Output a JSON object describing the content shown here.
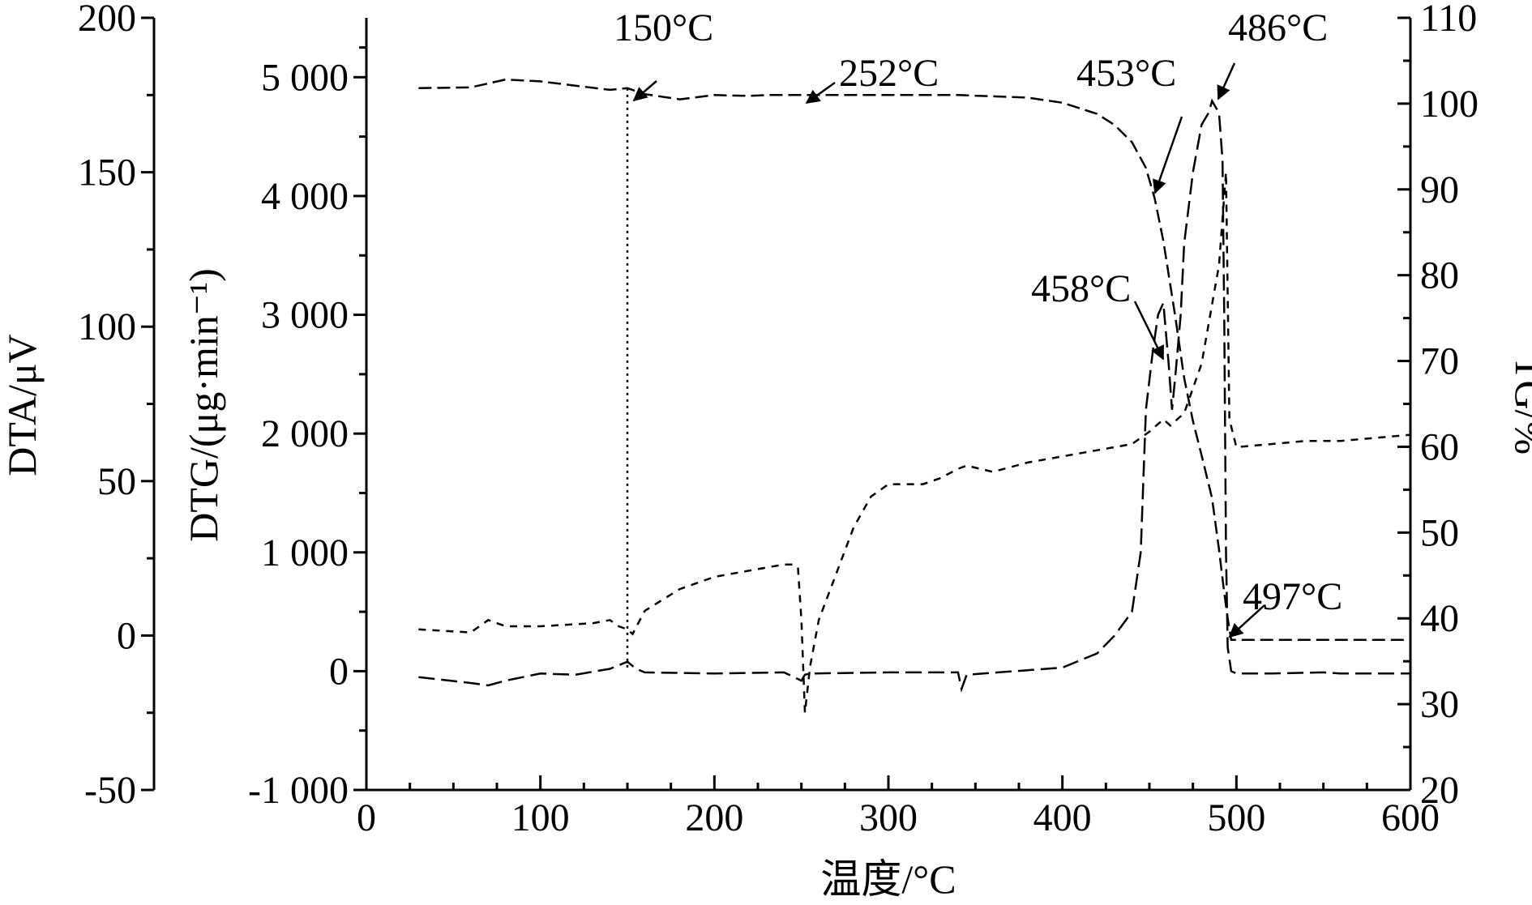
{
  "chart_data": {
    "type": "line",
    "xlabel": "温度/°C",
    "x_ticks": [
      0,
      100,
      200,
      300,
      400,
      500,
      600
    ],
    "xlim": [
      0,
      600
    ],
    "axes": {
      "dta": {
        "label": "DTA/μV",
        "ylim": [
          -50,
          200
        ],
        "ticks": [
          "-50",
          "0",
          "50",
          "100",
          "150",
          "200"
        ],
        "tick_values": [
          -50,
          0,
          50,
          100,
          150,
          200
        ]
      },
      "dtg": {
        "label": "DTG/(μg·min⁻¹)",
        "ylim": [
          -1000,
          5500
        ],
        "ticks": [
          "-1 000",
          "0",
          "1 000",
          "2 000",
          "3 000",
          "4 000",
          "5 000"
        ],
        "tick_values": [
          -1000,
          0,
          1000,
          2000,
          3000,
          4000,
          5000
        ]
      },
      "tg": {
        "label": "TG/%",
        "ylim": [
          20,
          110
        ],
        "ticks": [
          "20",
          "30",
          "40",
          "50",
          "60",
          "70",
          "80",
          "90",
          "100",
          "110"
        ],
        "tick_values": [
          20,
          30,
          40,
          50,
          60,
          70,
          80,
          90,
          100,
          110
        ]
      }
    },
    "series": [
      {
        "axis": "tg",
        "dash": "16,7",
        "x": [
          30,
          60,
          80,
          100,
          120,
          140,
          150,
          160,
          180,
          200,
          220,
          230,
          260,
          300,
          340,
          380,
          400,
          420,
          430,
          440,
          448,
          453,
          458,
          465,
          470,
          475,
          480,
          486,
          490,
          493,
          495,
          497,
          520,
          560,
          600
        ],
        "y": [
          101.8,
          101.9,
          102.8,
          102.6,
          102.1,
          101.6,
          101.8,
          101.1,
          100.5,
          101.0,
          100.9,
          101.0,
          101.0,
          101.0,
          101.0,
          100.7,
          100.1,
          98.8,
          97.5,
          95.5,
          92.5,
          89.0,
          84.0,
          75.0,
          68.0,
          63.0,
          59.0,
          54.0,
          48.0,
          43.0,
          40.0,
          37.5,
          37.5,
          37.5,
          37.5
        ]
      },
      {
        "axis": "dtg",
        "dash": "20,8",
        "x": [
          30,
          60,
          70,
          80,
          100,
          120,
          140,
          150,
          155,
          160,
          200,
          240,
          250,
          252,
          255,
          300,
          340,
          342,
          345,
          400,
          420,
          430,
          440,
          445,
          448,
          452,
          455,
          458,
          461,
          463,
          465,
          468,
          470,
          475,
          480,
          484,
          486,
          488,
          490,
          492,
          493,
          494,
          495,
          497,
          500,
          520,
          550,
          560,
          600
        ],
        "y": [
          -50,
          -100,
          -120,
          -80,
          -20,
          -30,
          20,
          80,
          20,
          -10,
          -20,
          -10,
          -80,
          -30,
          -20,
          -10,
          -10,
          -150,
          -30,
          30,
          150,
          300,
          500,
          1000,
          2200,
          2700,
          3000,
          3100,
          2600,
          2200,
          2500,
          3000,
          3600,
          4200,
          4600,
          4700,
          4800,
          4750,
          4700,
          4300,
          3000,
          1000,
          200,
          0,
          -20,
          -20,
          -10,
          -20,
          -20
        ]
      },
      {
        "axis": "dta",
        "dash": "9,8",
        "x": [
          30,
          60,
          70,
          80,
          100,
          130,
          140,
          145,
          150,
          153,
          160,
          180,
          200,
          220,
          240,
          245,
          248,
          250,
          252,
          255,
          260,
          270,
          280,
          290,
          300,
          320,
          330,
          340,
          345,
          360,
          380,
          400,
          420,
          440,
          450,
          458,
          462,
          466,
          470,
          480,
          490,
          494,
          496,
          500,
          520,
          540,
          560,
          580,
          600
        ],
        "y": [
          2,
          1,
          5,
          3,
          3,
          4,
          5,
          3,
          2,
          0.5,
          8,
          15,
          19,
          21,
          23,
          23,
          22,
          5,
          -25,
          -10,
          5,
          20,
          35,
          45,
          49,
          49,
          51,
          54,
          55,
          53,
          56,
          58,
          60,
          62,
          66,
          70,
          68,
          70,
          72,
          88,
          120,
          150,
          70,
          61,
          62,
          63,
          63,
          64,
          65
        ]
      }
    ],
    "annotations": [
      {
        "text": "150°C"
      },
      {
        "text": "252°C"
      },
      {
        "text": "453°C"
      },
      {
        "text": "486°C"
      },
      {
        "text": "458°C"
      },
      {
        "text": "497°C"
      }
    ]
  }
}
